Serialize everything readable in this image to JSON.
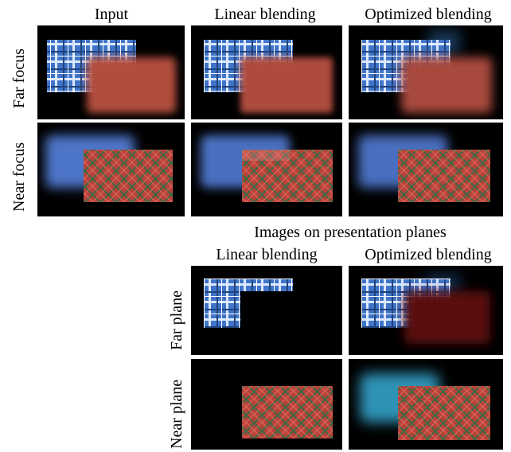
{
  "top_columns": [
    "Input",
    "Linear blending",
    "Optimized blending"
  ],
  "top_rows": [
    "Far focus",
    "Near focus"
  ],
  "bottom_title": "Images on presentation planes",
  "bottom_columns": [
    "Linear blending",
    "Optimized blending"
  ],
  "bottom_rows": [
    "Far plane",
    "Near plane"
  ],
  "colors": {
    "blue_plaid": "#3f74c8",
    "red_plaid": "#b7433a",
    "background": "#000000"
  }
}
